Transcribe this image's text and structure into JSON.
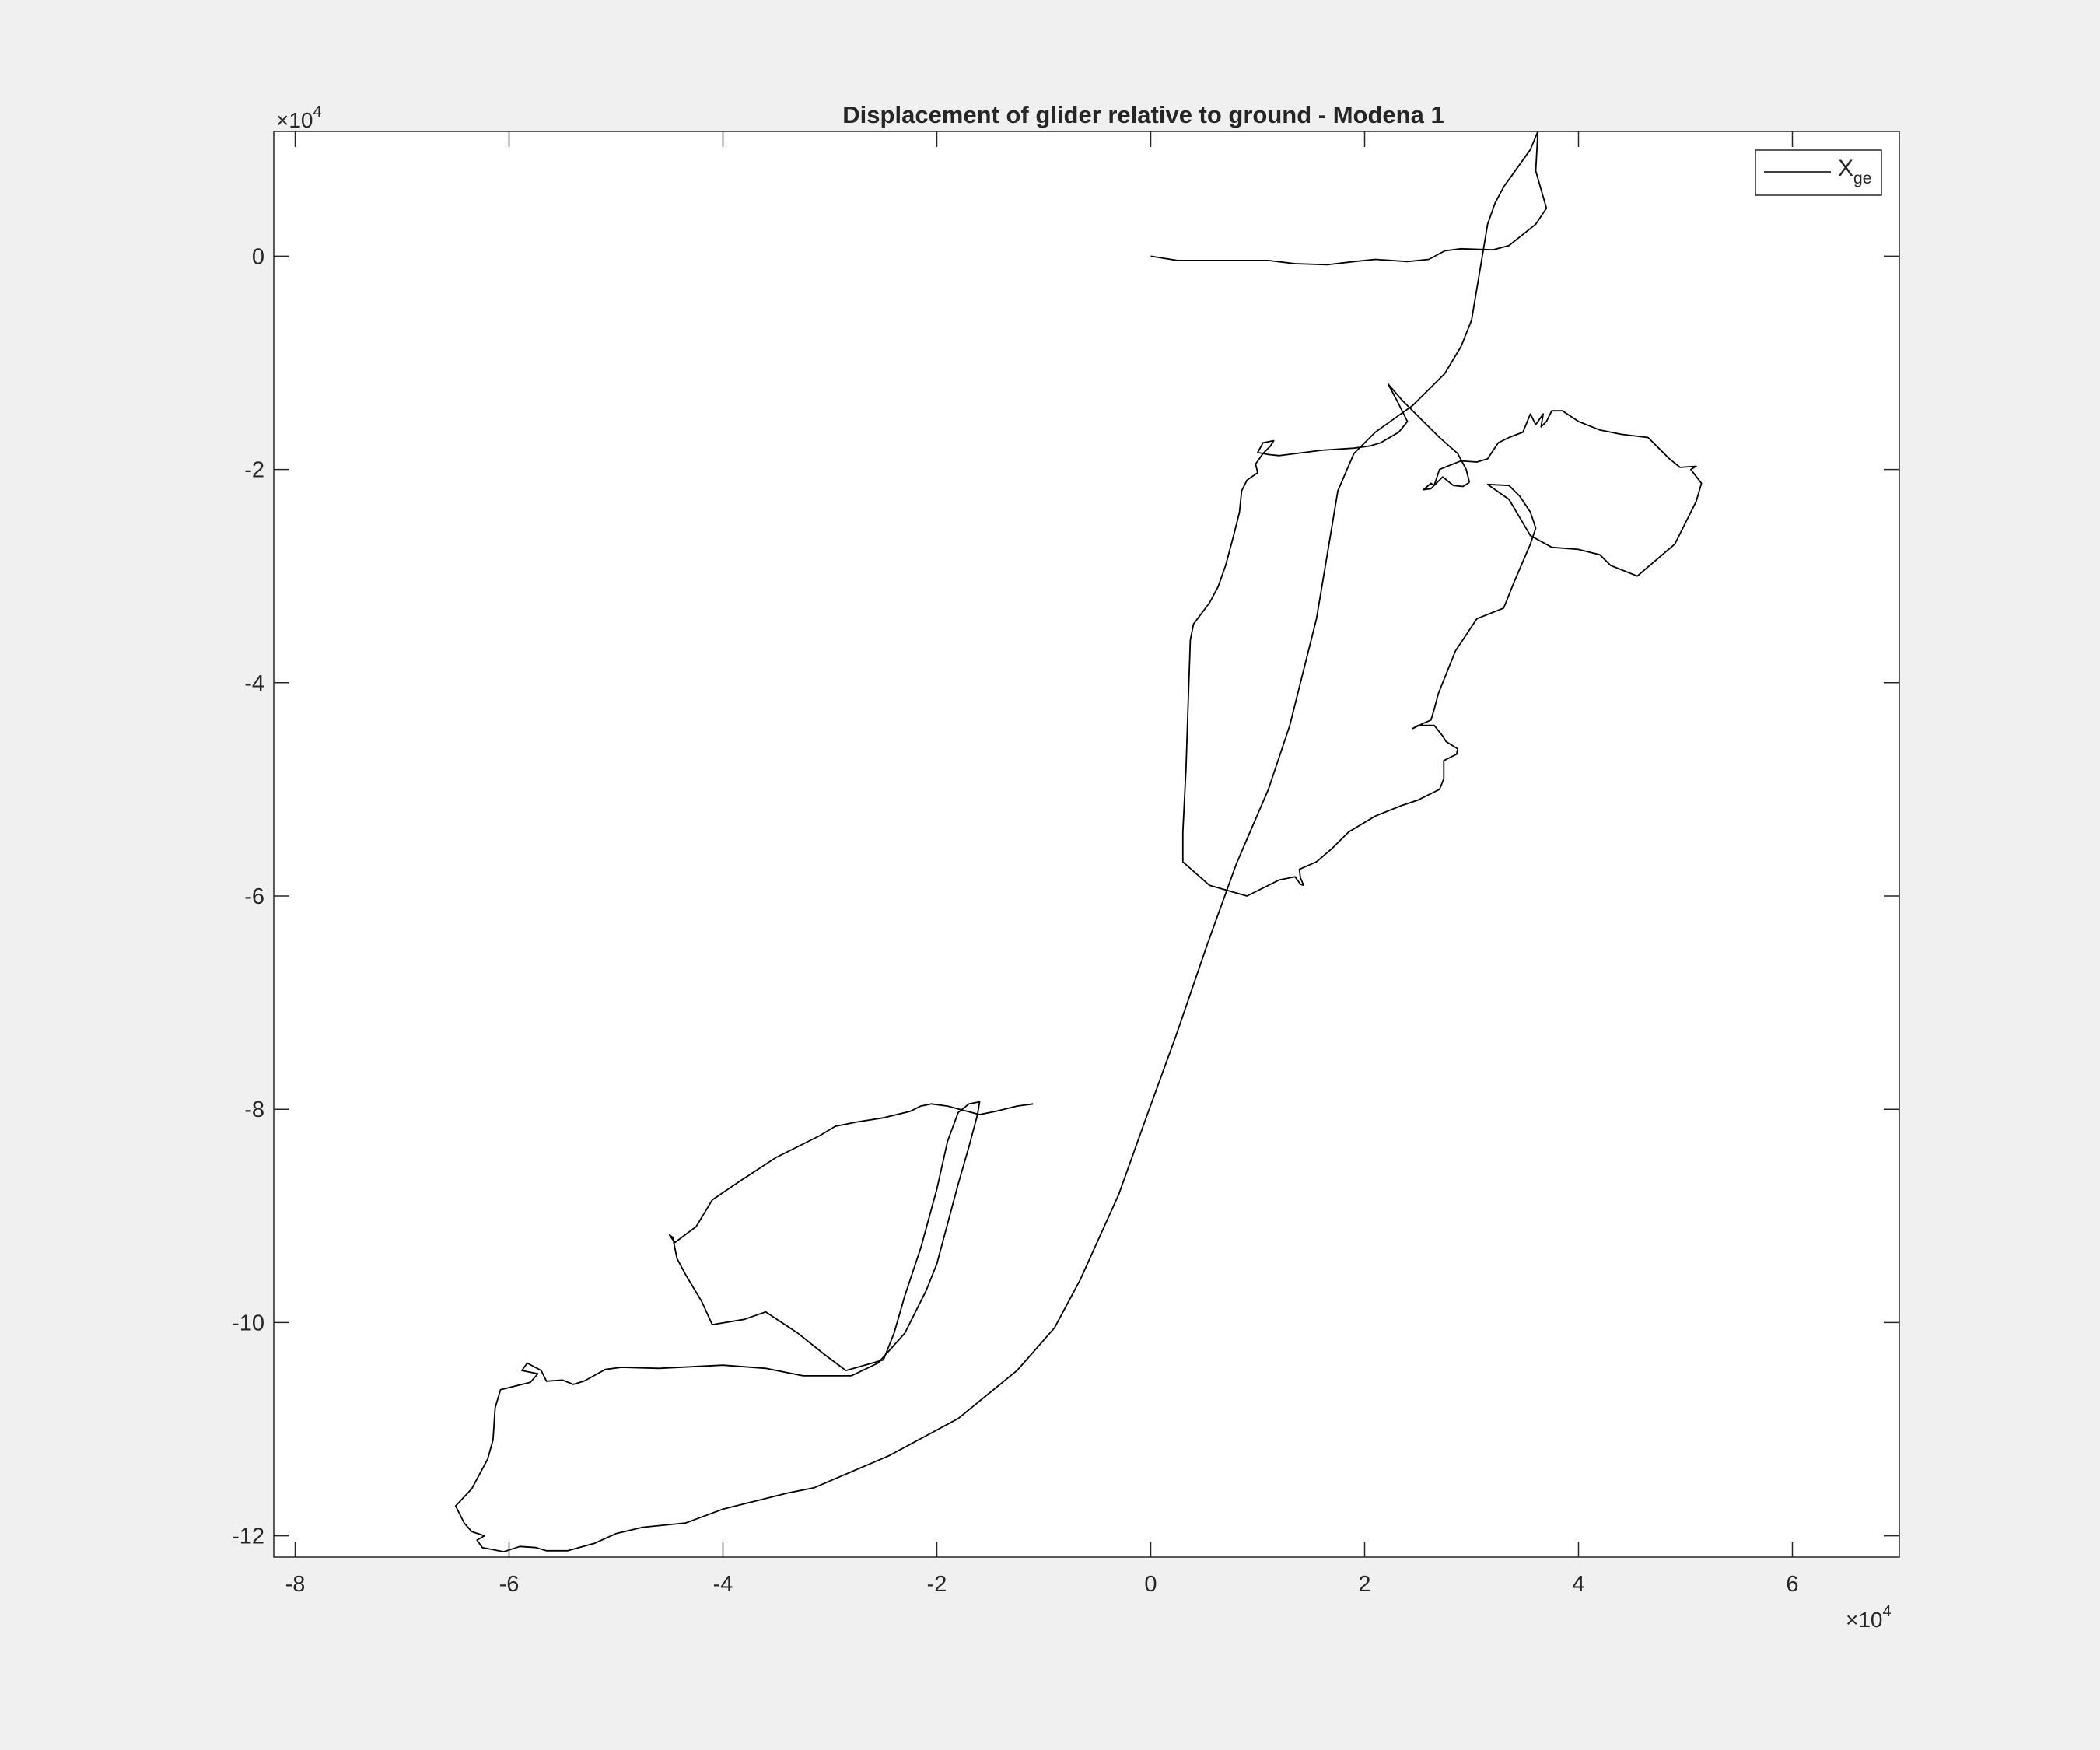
{
  "chart_data": {
    "type": "line",
    "title": "Displacement of glider relative to ground - Modena 1",
    "xlabel": "",
    "ylabel": "",
    "xlim": [
      -82000,
      70000
    ],
    "ylim": [
      -122000,
      11700
    ],
    "x_ticks": [
      -80000,
      -60000,
      -40000,
      -20000,
      0,
      20000,
      40000,
      60000
    ],
    "y_ticks": [
      -120000,
      -100000,
      -80000,
      -60000,
      -40000,
      -20000,
      0
    ],
    "x_tick_labels": [
      "-8",
      "-6",
      "-4",
      "-2",
      "0",
      "2",
      "4",
      "6"
    ],
    "y_tick_labels": [
      "-12",
      "-10",
      "-8",
      "-6",
      "-4",
      "-2",
      "0"
    ],
    "x_exponent_label": "×10",
    "x_exponent_power": "4",
    "y_exponent_label": "×10",
    "y_exponent_power": "4",
    "grid": false,
    "legend_position": "top-right",
    "series": [
      {
        "name": "X",
        "name_subscript": "ge",
        "color": "#000000",
        "points": [
          [
            0,
            0
          ],
          [
            2500,
            -400
          ],
          [
            5000,
            -400
          ],
          [
            7500,
            -400
          ],
          [
            11000,
            -400
          ],
          [
            13500,
            -700
          ],
          [
            16500,
            -800
          ],
          [
            19000,
            -500
          ],
          [
            21000,
            -300
          ],
          [
            24000,
            -500
          ],
          [
            26000,
            -300
          ],
          [
            27500,
            500
          ],
          [
            29000,
            700
          ],
          [
            32000,
            600
          ],
          [
            33500,
            1000
          ],
          [
            36000,
            3000
          ],
          [
            37000,
            4500
          ],
          [
            36000,
            8000
          ],
          [
            36200,
            11700
          ],
          [
            35500,
            10000
          ],
          [
            33000,
            6500
          ],
          [
            32200,
            5000
          ],
          [
            31500,
            3000
          ],
          [
            31000,
            0
          ],
          [
            30500,
            -3000
          ],
          [
            30000,
            -6000
          ],
          [
            29000,
            -8500
          ],
          [
            27500,
            -11000
          ],
          [
            24500,
            -14000
          ],
          [
            21000,
            -16500
          ],
          [
            19000,
            -18500
          ],
          [
            17500,
            -22000
          ],
          [
            16500,
            -28000
          ],
          [
            15500,
            -34000
          ],
          [
            14000,
            -40000
          ],
          [
            13000,
            -44000
          ],
          [
            11000,
            -50000
          ],
          [
            9500,
            -53500
          ],
          [
            8000,
            -57000
          ],
          [
            5300,
            -64500
          ],
          [
            2400,
            -73000
          ],
          [
            -500,
            -81000
          ],
          [
            -3000,
            -88000
          ],
          [
            -6600,
            -96000
          ],
          [
            -9000,
            -100500
          ],
          [
            -12500,
            -104500
          ],
          [
            -18000,
            -109000
          ],
          [
            -24500,
            -112500
          ],
          [
            -31500,
            -115500
          ],
          [
            -34000,
            -116000
          ],
          [
            -36000,
            -116500
          ],
          [
            -40000,
            -117500
          ],
          [
            -43500,
            -118800
          ],
          [
            -47500,
            -119200
          ],
          [
            -50000,
            -119800
          ],
          [
            -52000,
            -120700
          ],
          [
            -54500,
            -121400
          ],
          [
            -56500,
            -121400
          ],
          [
            -57500,
            -121100
          ],
          [
            -59000,
            -121000
          ],
          [
            -60500,
            -121500
          ],
          [
            -61500,
            -121300
          ],
          [
            -62500,
            -121100
          ],
          [
            -63000,
            -120400
          ],
          [
            -62300,
            -120000
          ],
          [
            -63500,
            -119600
          ],
          [
            -64200,
            -118800
          ],
          [
            -65000,
            -117200
          ],
          [
            -63500,
            -115600
          ],
          [
            -62000,
            -112800
          ],
          [
            -61500,
            -111000
          ],
          [
            -61300,
            -108000
          ],
          [
            -60800,
            -106300
          ],
          [
            -58000,
            -105600
          ],
          [
            -57300,
            -104800
          ],
          [
            -58800,
            -104500
          ],
          [
            -58300,
            -103800
          ],
          [
            -57000,
            -104500
          ],
          [
            -56500,
            -105500
          ],
          [
            -55000,
            -105400
          ],
          [
            -54000,
            -105800
          ],
          [
            -53000,
            -105500
          ],
          [
            -51000,
            -104400
          ],
          [
            -49500,
            -104200
          ],
          [
            -46000,
            -104300
          ],
          [
            -40000,
            -104000
          ],
          [
            -36000,
            -104300
          ],
          [
            -32500,
            -105000
          ],
          [
            -28000,
            -105000
          ],
          [
            -25500,
            -103800
          ],
          [
            -23000,
            -101000
          ],
          [
            -21000,
            -97000
          ],
          [
            -20000,
            -94500
          ],
          [
            -19200,
            -91500
          ],
          [
            -18000,
            -87000
          ],
          [
            -17000,
            -83500
          ],
          [
            -16200,
            -80500
          ],
          [
            -16000,
            -79300
          ],
          [
            -17000,
            -79500
          ],
          [
            -18000,
            -80300
          ],
          [
            -19000,
            -83000
          ],
          [
            -20000,
            -87500
          ],
          [
            -21500,
            -93000
          ],
          [
            -23000,
            -97500
          ],
          [
            -24000,
            -101000
          ],
          [
            -25000,
            -103500
          ],
          [
            -28500,
            -104500
          ],
          [
            -30500,
            -103000
          ],
          [
            -33000,
            -101000
          ],
          [
            -36000,
            -99000
          ],
          [
            -38000,
            -99700
          ],
          [
            -41000,
            -100200
          ],
          [
            -42000,
            -98000
          ],
          [
            -43500,
            -95500
          ],
          [
            -44300,
            -94000
          ],
          [
            -44700,
            -92000
          ],
          [
            -45000,
            -91800
          ],
          [
            -44500,
            -92500
          ],
          [
            -42500,
            -91000
          ],
          [
            -41000,
            -88500
          ],
          [
            -38500,
            -86800
          ],
          [
            -35000,
            -84500
          ],
          [
            -31000,
            -82500
          ],
          [
            -29500,
            -81600
          ],
          [
            -27500,
            -81200
          ],
          [
            -25000,
            -80800
          ],
          [
            -22500,
            -80200
          ],
          [
            -21500,
            -79700
          ],
          [
            -20500,
            -79500
          ],
          [
            -19000,
            -79700
          ],
          [
            -17500,
            -80100
          ],
          [
            -16000,
            -80500
          ],
          [
            -14500,
            -80200
          ],
          [
            -12500,
            -79700
          ],
          [
            -11000,
            -79500
          ]
        ]
      }
    ],
    "extra_segments": [
      [
        [
          29800,
          -21200
        ],
        [
          29500,
          -20000
        ],
        [
          28700,
          -18500
        ],
        [
          27000,
          -17000
        ],
        [
          25000,
          -15000
        ],
        [
          23500,
          -13500
        ],
        [
          22200,
          -12000
        ],
        [
          23000,
          -13500
        ],
        [
          24000,
          -15500
        ],
        [
          23200,
          -16500
        ],
        [
          21500,
          -17500
        ],
        [
          20500,
          -17800
        ],
        [
          19000,
          -18000
        ],
        [
          16000,
          -18200
        ],
        [
          12000,
          -18700
        ],
        [
          11000,
          -18600
        ],
        [
          10000,
          -18400
        ],
        [
          10500,
          -17500
        ],
        [
          11500,
          -17300
        ],
        [
          11200,
          -17800
        ],
        [
          10500,
          -18500
        ],
        [
          9800,
          -19500
        ],
        [
          10000,
          -20300
        ],
        [
          9000,
          -21000
        ],
        [
          8500,
          -22000
        ],
        [
          8300,
          -24000
        ],
        [
          7800,
          -26000
        ],
        [
          7000,
          -29000
        ],
        [
          6300,
          -31000
        ],
        [
          5500,
          -32500
        ],
        [
          4000,
          -34500
        ],
        [
          3700,
          -36000
        ],
        [
          3500,
          -42000
        ],
        [
          3300,
          -48000
        ],
        [
          3000,
          -54000
        ],
        [
          3000,
          -56800
        ],
        [
          5500,
          -59000
        ],
        [
          9000,
          -60000
        ],
        [
          12000,
          -58500
        ],
        [
          13500,
          -58200
        ],
        [
          14000,
          -58900
        ],
        [
          14300,
          -59000
        ],
        [
          14000,
          -58300
        ],
        [
          13900,
          -57500
        ],
        [
          15500,
          -56800
        ],
        [
          17000,
          -55500
        ],
        [
          18500,
          -54000
        ],
        [
          21000,
          -52500
        ],
        [
          23500,
          -51500
        ],
        [
          25000,
          -51000
        ],
        [
          27000,
          -50000
        ],
        [
          27400,
          -49000
        ],
        [
          27400,
          -47300
        ],
        [
          28600,
          -46700
        ],
        [
          28700,
          -46200
        ],
        [
          27600,
          -45500
        ],
        [
          27300,
          -45000
        ],
        [
          26500,
          -44000
        ],
        [
          25000,
          -44000
        ],
        [
          24500,
          -44300
        ],
        [
          25500,
          -43800
        ],
        [
          26200,
          -43500
        ],
        [
          26500,
          -42500
        ],
        [
          26900,
          -41000
        ],
        [
          28500,
          -37000
        ],
        [
          30500,
          -34000
        ],
        [
          33000,
          -33000
        ],
        [
          34000,
          -30500
        ],
        [
          35500,
          -27000
        ],
        [
          36000,
          -25500
        ],
        [
          35500,
          -24000
        ],
        [
          34500,
          -22500
        ],
        [
          33500,
          -21500
        ],
        [
          31500,
          -21400
        ],
        [
          33500,
          -22800
        ],
        [
          34500,
          -24500
        ],
        [
          35500,
          -26200
        ],
        [
          37500,
          -27300
        ],
        [
          40000,
          -27500
        ],
        [
          42000,
          -28000
        ],
        [
          43000,
          -29000
        ],
        [
          45500,
          -30000
        ],
        [
          49000,
          -27000
        ],
        [
          51000,
          -23000
        ],
        [
          51500,
          -21300
        ],
        [
          50500,
          -20000
        ],
        [
          51000,
          -19700
        ],
        [
          49500,
          -19800
        ],
        [
          48500,
          -19000
        ],
        [
          47500,
          -18000
        ],
        [
          46500,
          -17000
        ],
        [
          44000,
          -16700
        ],
        [
          42000,
          -16300
        ],
        [
          40000,
          -15500
        ],
        [
          38500,
          -14500
        ],
        [
          37500,
          -14500
        ],
        [
          37000,
          -15500
        ],
        [
          36500,
          -16000
        ],
        [
          36700,
          -14800
        ],
        [
          36000,
          -15800
        ],
        [
          35500,
          -14800
        ],
        [
          34800,
          -16500
        ],
        [
          33500,
          -17000
        ],
        [
          32500,
          -17500
        ],
        [
          31500,
          -19000
        ],
        [
          30500,
          -19300
        ],
        [
          29000,
          -19200
        ],
        [
          27000,
          -20000
        ],
        [
          26500,
          -21500
        ],
        [
          26200,
          -21300
        ],
        [
          25500,
          -21900
        ],
        [
          26200,
          -21800
        ],
        [
          27300,
          -20700
        ],
        [
          28300,
          -21500
        ],
        [
          29200,
          -21600
        ],
        [
          29800,
          -21200
        ]
      ]
    ]
  }
}
